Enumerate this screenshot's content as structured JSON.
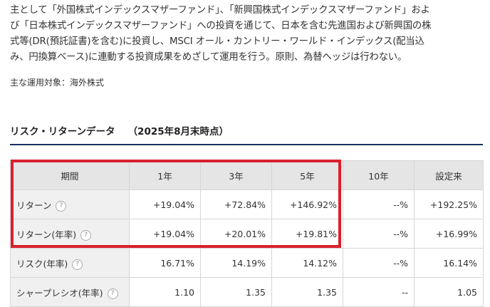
{
  "description": {
    "lines": [
      "主として「外国株式インデックスマザーファンド」、「新興国株式インデックスマザーファンド」およ",
      "び「日本株式インデックスマザーファンド」への投資を通じて、日本を含む先進国および新興国の株",
      "式等(DR(預託証書)を含む)に投資し、MSCI オール・カントリー・ワールド・インデックス(配当込",
      "み、円換算ベース)に連動する投資成果をめざして運用を行う。原則、為替ヘッジは行わない。"
    ]
  },
  "target": "主な運用対象：海外株式",
  "section": {
    "title": "リスク・リターンデータ",
    "date": "（2025年8月末時点）"
  },
  "table": {
    "headers": [
      "期間",
      "1年",
      "3年",
      "5年",
      "10年",
      "設定来"
    ],
    "rows": [
      {
        "label": "リターン",
        "values": [
          "+19.04%",
          "+72.84%",
          "+146.92%",
          "--%",
          "+192.25%"
        ]
      },
      {
        "label": "リターン(年率)",
        "values": [
          "+19.04%",
          "+20.01%",
          "+19.81%",
          "--%",
          "+16.99%"
        ]
      },
      {
        "label": "リスク(年率)",
        "values": [
          "16.71%",
          "14.19%",
          "14.12%",
          "--%",
          "16.14%"
        ]
      },
      {
        "label": "シャープレシオ(年率)",
        "values": [
          "1.10",
          "1.35",
          "1.35",
          "--",
          "1.05"
        ]
      }
    ],
    "help_icon": "?"
  },
  "colors": {
    "highlight": "#d9202e",
    "section_rule": "#16315e",
    "header_bg": "#e5e5e5"
  }
}
